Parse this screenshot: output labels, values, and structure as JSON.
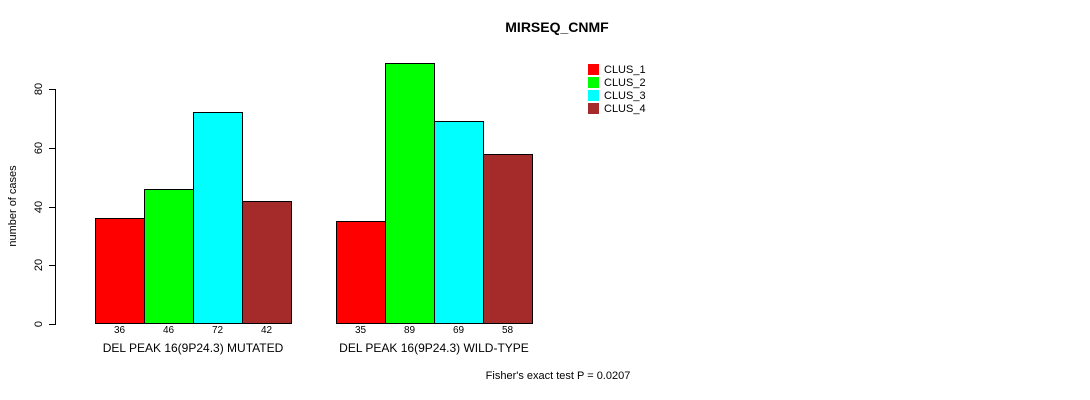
{
  "chart_data": {
    "type": "bar",
    "title": "MIRSEQ_CNMF",
    "xlabel": "",
    "ylabel": "number of cases",
    "ylim": [
      0,
      80
    ],
    "yticks": [
      0,
      20,
      40,
      60,
      80
    ],
    "grid": false,
    "legend_position": "top-right",
    "categories": [
      "DEL PEAK 16(9P24.3) MUTATED",
      "DEL PEAK 16(9P24.3) WILD-TYPE"
    ],
    "series": [
      {
        "name": "CLUS_1",
        "color": "#FF0000",
        "values": [
          36,
          35
        ]
      },
      {
        "name": "CLUS_2",
        "color": "#00FF00",
        "values": [
          46,
          89
        ]
      },
      {
        "name": "CLUS_3",
        "color": "#00FFFF",
        "values": [
          72,
          69
        ]
      },
      {
        "name": "CLUS_4",
        "color": "#A52A2A",
        "values": [
          42,
          58
        ]
      }
    ],
    "bar_value_labels": [
      [
        36,
        46,
        72,
        42
      ],
      [
        35,
        89,
        69,
        58
      ]
    ],
    "annotation": "Fisher's exact test P = 0.0207",
    "bar_outline_color": "#000000",
    "background_color": "#FFFFFF"
  }
}
